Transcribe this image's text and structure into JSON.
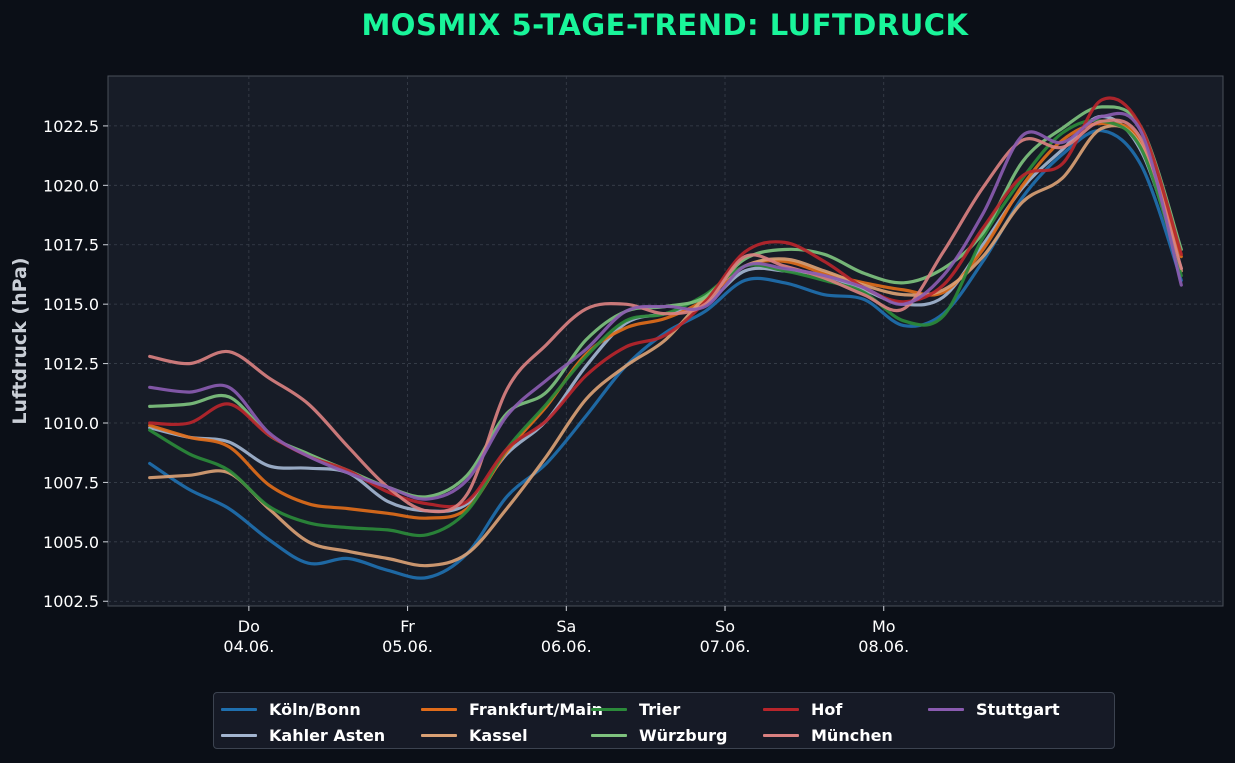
{
  "chart_data": {
    "type": "line",
    "title": "MOSMIX 5-TAGE-TREND: LUFTDRUCK",
    "xlabel": "",
    "ylabel": "Luftdruck (hPa)",
    "ylim": [
      1002.3,
      1024.6
    ],
    "yticks": [
      "1002.5",
      "1005.0",
      "1007.5",
      "1010.0",
      "1012.5",
      "1015.0",
      "1017.5",
      "1020.0",
      "1022.5"
    ],
    "xticks": [
      {
        "line1": "Do",
        "line2": "04.06."
      },
      {
        "line1": "Fr",
        "line2": "05.06."
      },
      {
        "line1": "Sa",
        "line2": "06.06."
      },
      {
        "line1": "So",
        "line2": "07.06."
      },
      {
        "line1": "Mo",
        "line2": "08.06."
      }
    ],
    "x_unit": "hours relative to 04.06. 00:00",
    "x": [
      -15,
      -9,
      -3,
      3,
      9,
      15,
      21,
      27,
      33,
      39,
      45,
      51,
      57,
      63,
      69,
      75,
      81,
      87,
      93,
      99,
      105,
      111,
      117,
      123,
      129,
      135,
      141
    ],
    "grid": true,
    "legend_position": "bottom",
    "series": [
      {
        "name": "Köln/Bonn",
        "color": "#1f6fae",
        "values": [
          1008.3,
          1007.2,
          1006.4,
          1005.1,
          1004.1,
          1004.3,
          1003.8,
          1003.5,
          1004.5,
          1006.9,
          1008.3,
          1010.3,
          1012.4,
          1013.8,
          1014.7,
          1016.0,
          1015.9,
          1015.4,
          1015.2,
          1014.1,
          1014.6,
          1016.8,
          1019.5,
          1021.3,
          1022.3,
          1020.8,
          1016.0
        ]
      },
      {
        "name": "Kahler Asten",
        "color": "#a3b5d0",
        "values": [
          1009.8,
          1009.4,
          1009.2,
          1008.2,
          1008.1,
          1007.9,
          1006.7,
          1006.3,
          1006.6,
          1008.7,
          1010.1,
          1012.4,
          1014.2,
          1014.6,
          1015.0,
          1016.4,
          1016.4,
          1016.2,
          1015.6,
          1015.0,
          1015.3,
          1017.5,
          1019.9,
          1021.5,
          1022.9,
          1021.4,
          1016.5
        ]
      },
      {
        "name": "Frankfurt/Main",
        "color": "#e06c1a",
        "values": [
          1009.9,
          1009.4,
          1009.0,
          1007.4,
          1006.6,
          1006.4,
          1006.2,
          1006.0,
          1006.4,
          1008.8,
          1010.7,
          1012.9,
          1014.0,
          1014.4,
          1015.2,
          1016.6,
          1016.8,
          1016.3,
          1015.9,
          1015.6,
          1015.5,
          1017.3,
          1020.0,
          1021.9,
          1022.6,
          1021.8,
          1017.0
        ]
      },
      {
        "name": "Kassel",
        "color": "#d9a074",
        "values": [
          1007.7,
          1007.8,
          1007.9,
          1006.4,
          1005.0,
          1004.6,
          1004.3,
          1004.0,
          1004.5,
          1006.4,
          1008.6,
          1011.0,
          1012.4,
          1013.5,
          1015.3,
          1016.6,
          1016.9,
          1016.4,
          1015.8,
          1015.4,
          1015.6,
          1017.0,
          1019.3,
          1020.3,
          1022.4,
          1021.6,
          1016.4
        ]
      },
      {
        "name": "Trier",
        "color": "#2b8a3a",
        "values": [
          1009.7,
          1008.7,
          1008.0,
          1006.5,
          1005.8,
          1005.6,
          1005.5,
          1005.3,
          1006.3,
          1008.9,
          1010.8,
          1012.8,
          1014.3,
          1014.6,
          1015.4,
          1016.6,
          1016.4,
          1016.0,
          1015.5,
          1014.3,
          1014.5,
          1017.8,
          1020.3,
          1022.2,
          1022.7,
          1021.5,
          1016.2
        ]
      },
      {
        "name": "Würzburg",
        "color": "#7ec27e",
        "values": [
          1010.7,
          1010.8,
          1011.1,
          1009.5,
          1008.7,
          1008.0,
          1007.3,
          1006.9,
          1007.8,
          1010.4,
          1011.3,
          1013.5,
          1014.7,
          1014.9,
          1015.3,
          1016.9,
          1017.3,
          1017.1,
          1016.3,
          1015.9,
          1016.5,
          1018.0,
          1021.0,
          1022.4,
          1023.3,
          1022.4,
          1017.3
        ]
      },
      {
        "name": "Hof",
        "color": "#b8252b",
        "values": [
          1010.0,
          1010.0,
          1010.8,
          1009.5,
          1008.6,
          1008.0,
          1007.1,
          1006.6,
          1006.7,
          1008.9,
          1010.1,
          1012.0,
          1013.2,
          1013.7,
          1015.1,
          1017.2,
          1017.6,
          1016.8,
          1015.7,
          1015.1,
          1015.8,
          1018.2,
          1020.4,
          1020.9,
          1023.6,
          1022.4,
          1017.1
        ]
      },
      {
        "name": "München",
        "color": "#d98080",
        "values": [
          1012.8,
          1012.5,
          1013.0,
          1011.9,
          1010.8,
          1009.0,
          1007.3,
          1006.3,
          1007.0,
          1011.4,
          1013.3,
          1014.8,
          1015.0,
          1014.6,
          1015.0,
          1017.0,
          1016.6,
          1016.1,
          1015.4,
          1014.8,
          1017.2,
          1019.9,
          1021.9,
          1021.6,
          1022.7,
          1021.9,
          1016.5
        ]
      },
      {
        "name": "Stuttgart",
        "color": "#8a5bb0",
        "values": [
          1011.5,
          1011.3,
          1011.5,
          1009.6,
          1008.6,
          1007.9,
          1007.3,
          1006.8,
          1007.6,
          1010.3,
          1011.8,
          1013.1,
          1014.7,
          1014.9,
          1014.9,
          1016.6,
          1016.5,
          1016.2,
          1015.7,
          1015.0,
          1016.2,
          1018.8,
          1022.1,
          1021.8,
          1022.9,
          1022.2,
          1015.8
        ]
      }
    ]
  }
}
